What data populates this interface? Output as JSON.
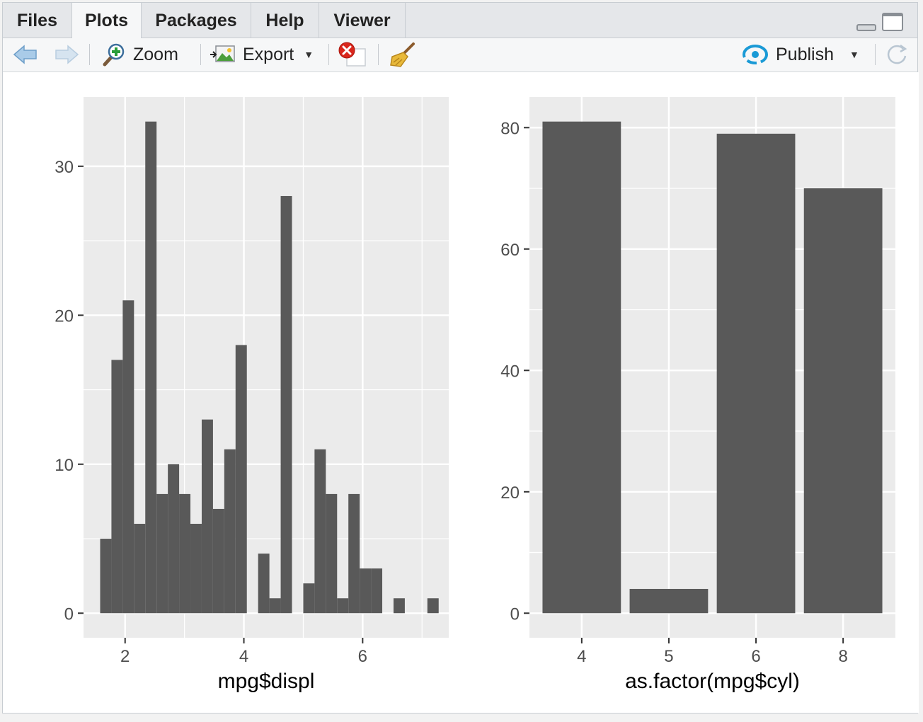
{
  "tabs": [
    {
      "label": "Files"
    },
    {
      "label": "Plots"
    },
    {
      "label": "Packages"
    },
    {
      "label": "Help"
    },
    {
      "label": "Viewer"
    }
  ],
  "active_tab": "Plots",
  "toolbar": {
    "zoom_label": "Zoom",
    "export_label": "Export",
    "publish_label": "Publish",
    "icons": [
      "back-arrow-icon",
      "forward-arrow-icon",
      "zoom-icon",
      "export-icon",
      "remove-plot-icon",
      "broom-icon",
      "publish-icon",
      "refresh-icon"
    ]
  },
  "colors": {
    "panel_bg": "#EBEBEB",
    "grid": "#FFFFFF",
    "bar_fill": "#595959",
    "publish_blue": "#1a9ad6",
    "remove_red": "#d9261c"
  },
  "chart_data": [
    {
      "type": "bar",
      "subtype": "histogram",
      "xlabel": "mpg$displ",
      "ylabel": "",
      "bin_width": 0.19,
      "bins": [
        {
          "x0": 1.58,
          "x1": 1.77,
          "count": 5
        },
        {
          "x0": 1.77,
          "x1": 1.96,
          "count": 17
        },
        {
          "x0": 1.96,
          "x1": 2.15,
          "count": 21
        },
        {
          "x0": 2.15,
          "x1": 2.34,
          "count": 6
        },
        {
          "x0": 2.34,
          "x1": 2.53,
          "count": 33
        },
        {
          "x0": 2.53,
          "x1": 2.72,
          "count": 8
        },
        {
          "x0": 2.72,
          "x1": 2.91,
          "count": 10
        },
        {
          "x0": 2.91,
          "x1": 3.1,
          "count": 8
        },
        {
          "x0": 3.1,
          "x1": 3.29,
          "count": 6
        },
        {
          "x0": 3.29,
          "x1": 3.48,
          "count": 13
        },
        {
          "x0": 3.48,
          "x1": 3.67,
          "count": 7
        },
        {
          "x0": 3.67,
          "x1": 3.86,
          "count": 11
        },
        {
          "x0": 3.86,
          "x1": 4.05,
          "count": 18
        },
        {
          "x0": 4.05,
          "x1": 4.24,
          "count": 0
        },
        {
          "x0": 4.24,
          "x1": 4.43,
          "count": 4
        },
        {
          "x0": 4.43,
          "x1": 4.62,
          "count": 1
        },
        {
          "x0": 4.62,
          "x1": 4.81,
          "count": 28
        },
        {
          "x0": 4.81,
          "x1": 5.0,
          "count": 0
        },
        {
          "x0": 5.0,
          "x1": 5.19,
          "count": 2
        },
        {
          "x0": 5.19,
          "x1": 5.38,
          "count": 11
        },
        {
          "x0": 5.38,
          "x1": 5.57,
          "count": 8
        },
        {
          "x0": 5.57,
          "x1": 5.76,
          "count": 1
        },
        {
          "x0": 5.76,
          "x1": 5.95,
          "count": 8
        },
        {
          "x0": 5.95,
          "x1": 6.14,
          "count": 3
        },
        {
          "x0": 6.14,
          "x1": 6.33,
          "count": 3
        },
        {
          "x0": 6.33,
          "x1": 6.52,
          "count": 0
        },
        {
          "x0": 6.52,
          "x1": 6.71,
          "count": 1
        },
        {
          "x0": 6.71,
          "x1": 6.9,
          "count": 0
        },
        {
          "x0": 6.9,
          "x1": 7.09,
          "count": 0
        },
        {
          "x0": 7.09,
          "x1": 7.28,
          "count": 1
        }
      ],
      "xlim": [
        1.3,
        7.45
      ],
      "ylim": [
        -1.65,
        34.65
      ],
      "xticks": [
        "2",
        "4",
        "6"
      ],
      "xtick_values": [
        2,
        4,
        6
      ],
      "yticks": [
        "0",
        "10",
        "20",
        "30"
      ],
      "ytick_values": [
        0,
        10,
        20,
        30
      ],
      "grid": true
    },
    {
      "type": "bar",
      "xlabel": "as.factor(mpg$cyl)",
      "ylabel": "",
      "categories": [
        "4",
        "5",
        "6",
        "8"
      ],
      "values": [
        81,
        4,
        79,
        70
      ],
      "ylim": [
        -4.05,
        85.05
      ],
      "yticks": [
        "0",
        "20",
        "40",
        "60",
        "80"
      ],
      "ytick_values": [
        0,
        20,
        40,
        60,
        80
      ],
      "grid": true
    }
  ]
}
